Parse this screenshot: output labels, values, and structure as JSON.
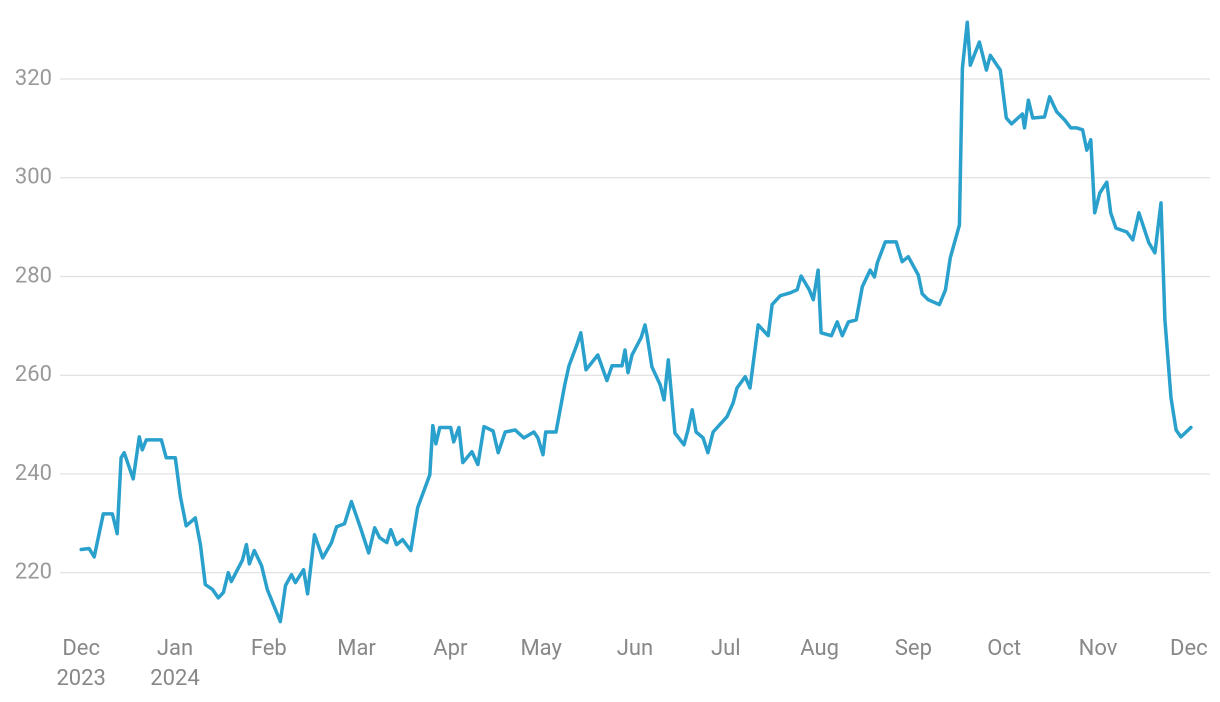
{
  "chart_data": {
    "type": "line",
    "color": "#2aa0cc",
    "grid": true,
    "xlim": [
      -7,
      373
    ],
    "ylim": [
      209,
      336
    ],
    "yticks": [
      220,
      240,
      260,
      280,
      300,
      320
    ],
    "xticks": [
      {
        "value": 0,
        "label": "Dec\n2023"
      },
      {
        "value": 31,
        "label": "Jan\n2024"
      },
      {
        "value": 62,
        "label": "Feb"
      },
      {
        "value": 91,
        "label": "Mar"
      },
      {
        "value": 122,
        "label": "Apr"
      },
      {
        "value": 152,
        "label": "May"
      },
      {
        "value": 183,
        "label": "Jun"
      },
      {
        "value": 213,
        "label": "Jul"
      },
      {
        "value": 244,
        "label": "Aug"
      },
      {
        "value": 275,
        "label": "Sep"
      },
      {
        "value": 305,
        "label": "Oct"
      },
      {
        "value": 336,
        "label": "Nov"
      },
      {
        "value": 366,
        "label": "Dec"
      }
    ],
    "x": [
      0,
      2.6,
      4.3,
      6,
      7.3,
      10.3,
      11.9,
      13.2,
      14.2,
      17.2,
      19.2,
      20.2,
      21.5,
      26.5,
      28.1,
      31.1,
      32.8,
      34.7,
      37.7,
      39.4,
      41,
      43.4,
      45.3,
      47,
      48.6,
      49.6,
      53.3,
      54.6,
      55.6,
      57.2,
      59.6,
      61.5,
      65.8,
      67.5,
      69.5,
      70.8,
      73.5,
      74.8,
      77.1,
      79.8,
      82.7,
      84.4,
      87,
      89.3,
      92.3,
      95,
      97,
      98.6,
      101,
      102.3,
      104.2,
      106.2,
      108.9,
      111.2,
      115.2,
      116.2,
      117.2,
      118.5,
      122.1,
      123.1,
      124.8,
      126.1,
      129.1,
      131.1,
      133.1,
      136.1,
      137.8,
      140.1,
      143.4,
      146.3,
      149.6,
      150.9,
      152.6,
      153.5,
      156.9,
      159.8,
      161.2,
      163.8,
      165.1,
      166.8,
      170.7,
      173.7,
      175.4,
      178.7,
      179.7,
      180.7,
      182,
      185,
      186.3,
      187,
      188.6,
      191.3,
      192.6,
      194,
      196.2,
      199.2,
      200.5,
      201.9,
      203.2,
      205.5,
      207.1,
      208.8,
      213.4,
      215.4,
      216.7,
      219.4,
      221,
      223.7,
      227,
      228.3,
      231,
      234.3,
      236.6,
      237.9,
      240.6,
      241.9,
      243.5,
      244.5,
      247.9,
      249.8,
      251.5,
      253.5,
      256.1,
      258.1,
      260.7,
      262.1,
      263.1,
      265.7,
      269.3,
      271.3,
      273.3,
      276.6,
      277.9,
      279.9,
      283.6,
      285.6,
      287.2,
      290.2,
      291.2,
      292.8,
      293.8,
      296.8,
      299.1,
      300.4,
      303.7,
      305.7,
      307.4,
      311,
      311.7,
      313,
      314.4,
      318.3,
      320,
      322.3,
      325,
      327,
      329,
      330.9,
      332.3,
      333.6,
      334.9,
      336.6,
      338.9,
      340.2,
      341.9,
      345.5,
      347.5,
      349.5,
      352.8,
      354.8,
      356.8,
      358.1,
      360.1,
      361.8,
      363.4,
      366.7
    ],
    "values": [
      224.7,
      224.9,
      223.2,
      228.1,
      231.9,
      231.9,
      227.9,
      243.3,
      244.3,
      239,
      247.5,
      244.9,
      246.9,
      246.9,
      243.3,
      243.3,
      235.4,
      229.5,
      231.1,
      225.7,
      217.6,
      216.6,
      214.9,
      216,
      220,
      218.2,
      222.6,
      225.7,
      221.8,
      224.5,
      221.4,
      216.6,
      210.1,
      217.4,
      219.6,
      218,
      220.6,
      215.7,
      227.7,
      223,
      226.1,
      229.3,
      229.9,
      234.4,
      229.1,
      224,
      229.1,
      227.1,
      226.1,
      228.7,
      225.7,
      226.7,
      224.5,
      233.2,
      239.8,
      249.8,
      246.1,
      249.4,
      249.4,
      246.5,
      249.4,
      242.3,
      244.5,
      241.9,
      249.6,
      248.7,
      244.3,
      248.5,
      248.9,
      247.3,
      248.5,
      247.3,
      243.9,
      248.5,
      248.5,
      258.1,
      261.9,
      266.2,
      268.6,
      261.1,
      264.1,
      258.9,
      261.9,
      261.9,
      265.1,
      260.5,
      264.1,
      267.6,
      270.2,
      268,
      261.7,
      258.1,
      255,
      263.1,
      248.3,
      245.9,
      248.9,
      253,
      248.5,
      247.3,
      244.3,
      248.5,
      251.6,
      254.4,
      257.4,
      259.7,
      257.4,
      270.2,
      268,
      274.3,
      276.1,
      276.7,
      277.3,
      280.1,
      277.3,
      275.3,
      281.3,
      268.6,
      268,
      270.8,
      268,
      270.8,
      271.2,
      277.9,
      281.3,
      279.9,
      282.8,
      287,
      287,
      283,
      284,
      280.3,
      276.5,
      275.3,
      274.3,
      277.3,
      283.8,
      290.4,
      322.2,
      331.5,
      322.8,
      327.5,
      321.8,
      324.8,
      321.8,
      312.1,
      310.9,
      312.9,
      310.1,
      315.7,
      312.1,
      312.3,
      316.4,
      313.4,
      311.7,
      310.1,
      310.1,
      309.7,
      305.6,
      307.7,
      292.9,
      296.9,
      299.1,
      292.9,
      289.8,
      289,
      287.4,
      292.9,
      286.8,
      284.8,
      294.9,
      271.2,
      255.4,
      248.9,
      247.5,
      249.4
    ]
  }
}
